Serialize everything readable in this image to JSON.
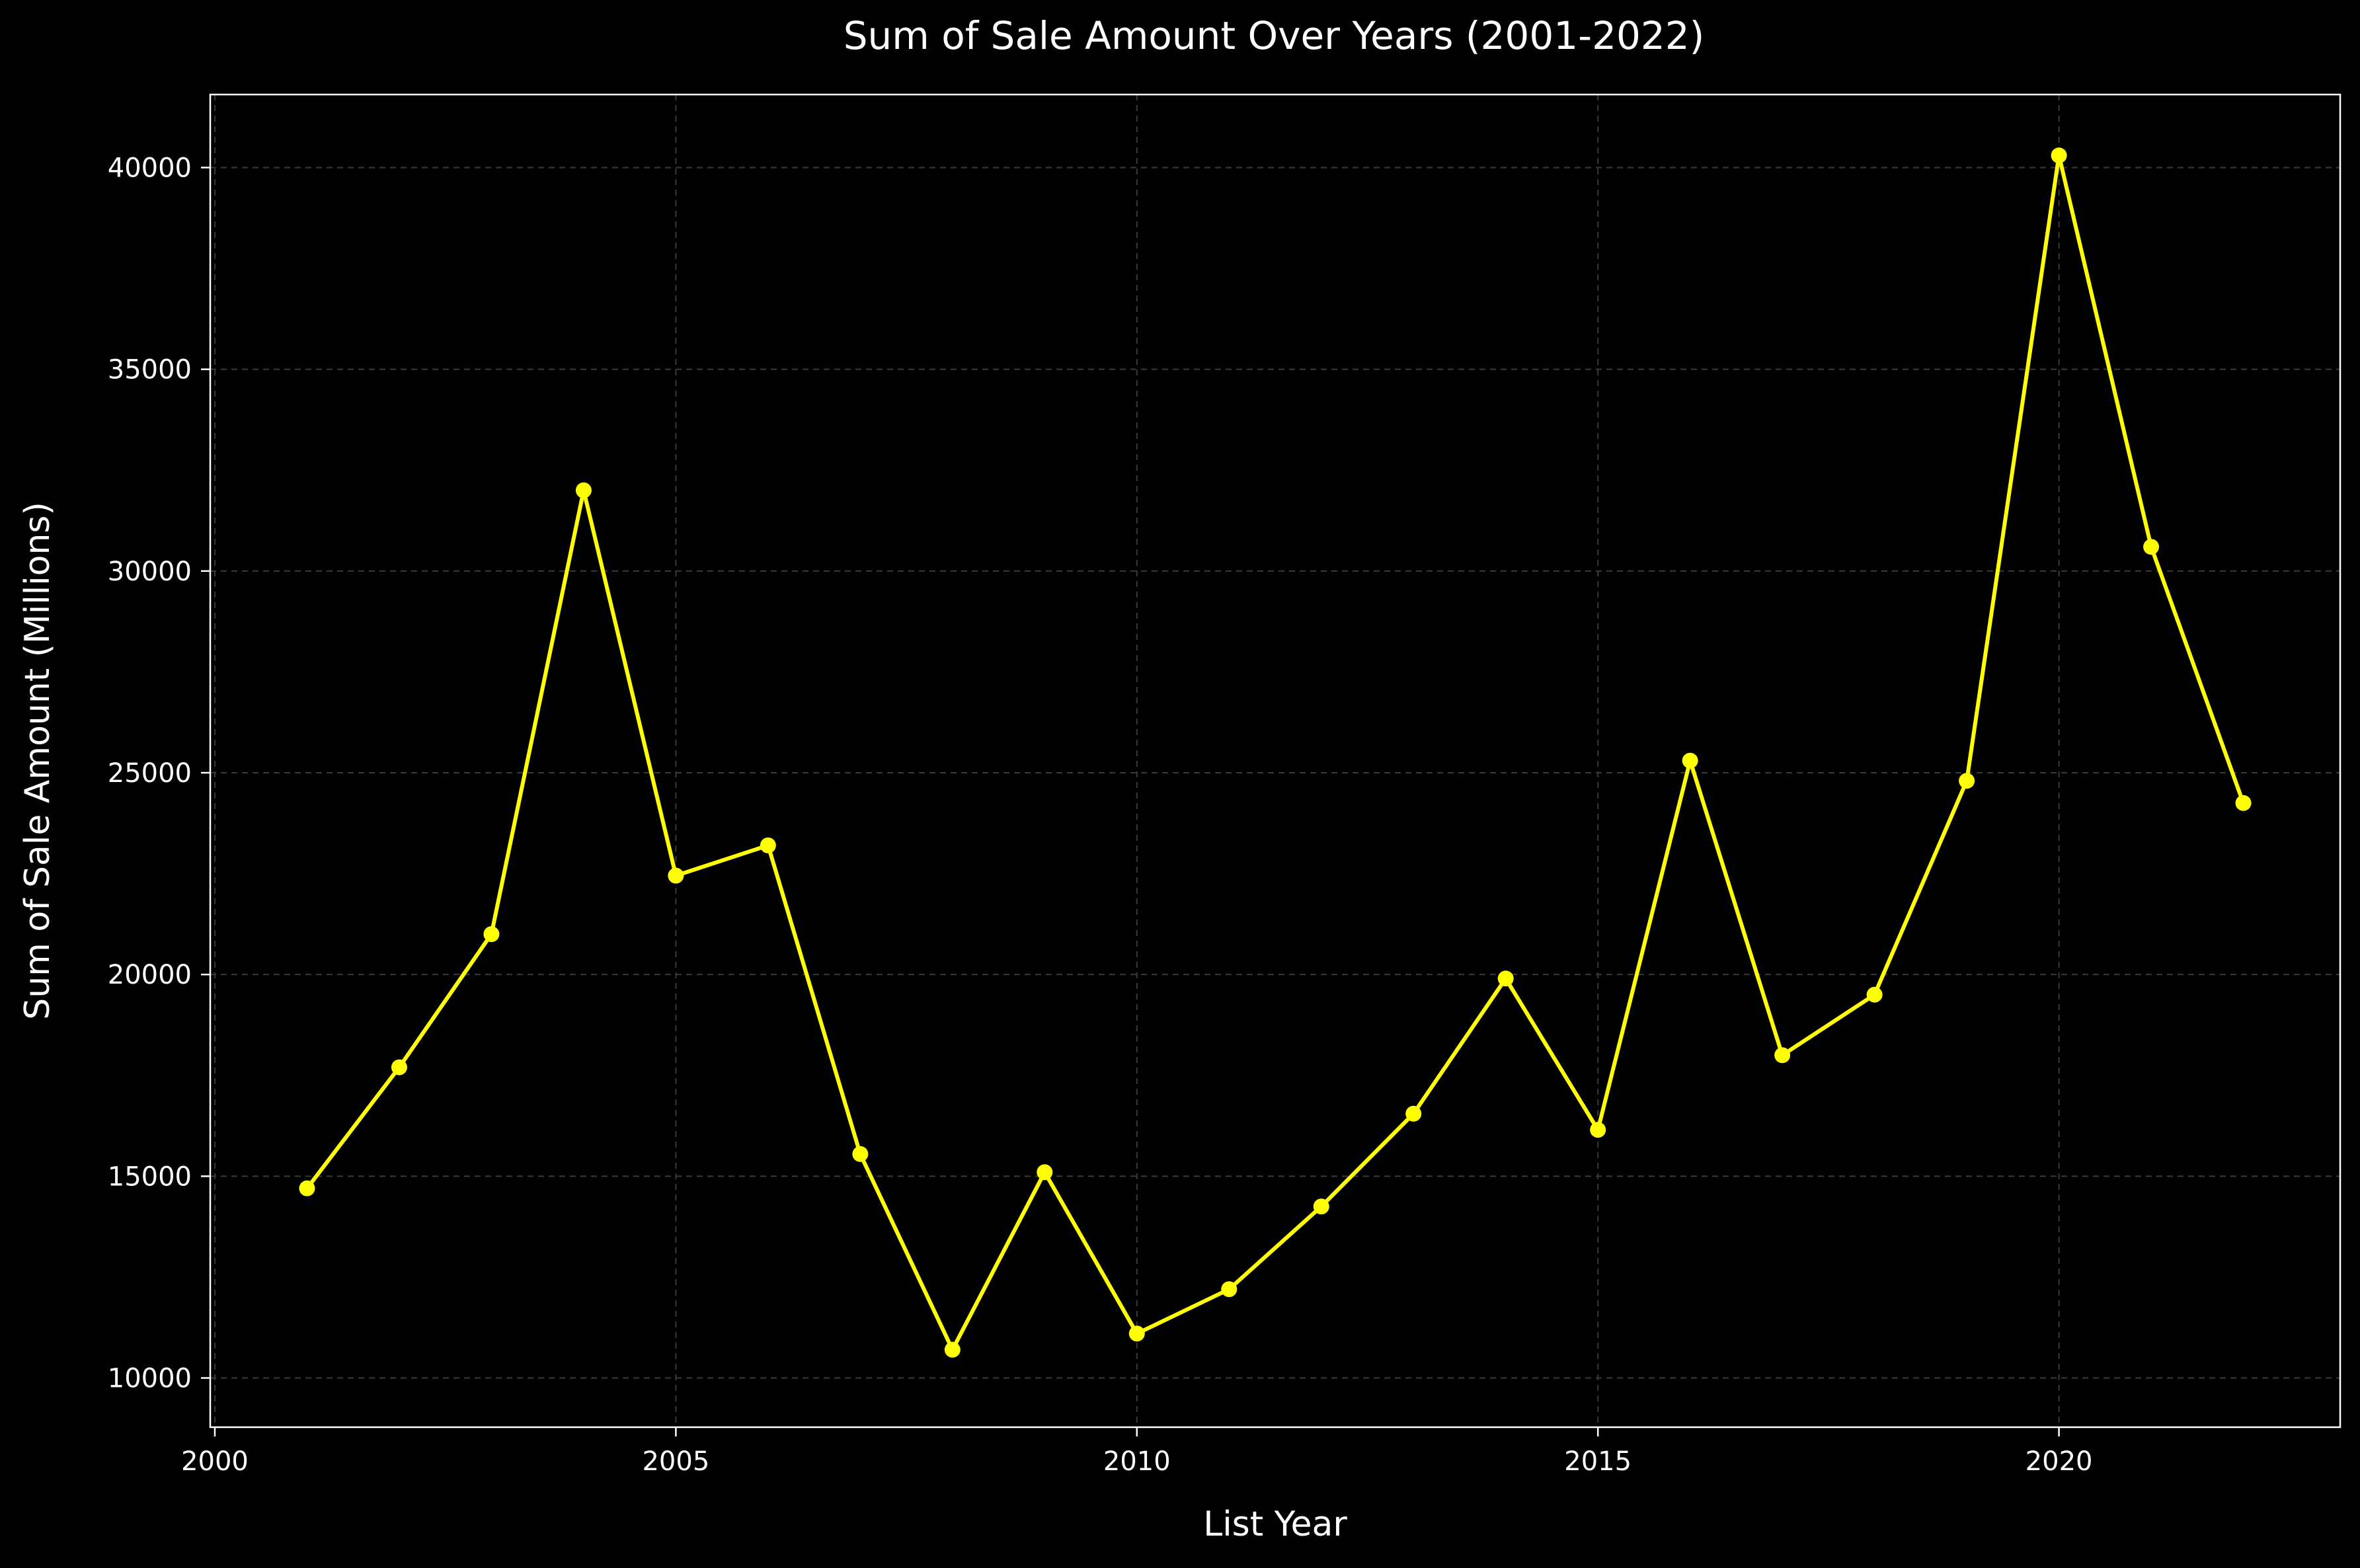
{
  "chart_data": {
    "type": "line",
    "title": "Sum of Sale Amount Over Years (2001-2022)",
    "xlabel": "List Year",
    "ylabel": "Sum of Sale Amount (Millions)",
    "x": [
      2001,
      2002,
      2003,
      2004,
      2005,
      2006,
      2007,
      2008,
      2009,
      2010,
      2011,
      2012,
      2013,
      2014,
      2015,
      2016,
      2017,
      2018,
      2019,
      2020,
      2021,
      2022
    ],
    "series": [
      {
        "values": [
          14700,
          17700,
          21000,
          32000,
          22450,
          23200,
          15550,
          10700,
          15100,
          11100,
          12200,
          14250,
          16550,
          19900,
          16150,
          25300,
          18000,
          19500,
          24800,
          40300,
          30600,
          24250
        ]
      }
    ],
    "xlim": [
      1999.95,
      2023.05
    ],
    "ylim": [
      8780,
      41810
    ],
    "xticks": [
      2000,
      2005,
      2010,
      2015,
      2020
    ],
    "yticks": [
      10000,
      15000,
      20000,
      25000,
      30000,
      35000,
      40000
    ],
    "xtick_labels": [
      "2000",
      "2005",
      "2010",
      "2015",
      "2020"
    ],
    "ytick_labels": [
      "10000",
      "15000",
      "20000",
      "25000",
      "30000",
      "35000",
      "40000"
    ],
    "grid": true,
    "line_color": "#ffff00",
    "marker_color": "#ffff00",
    "background_color": "#000000",
    "axis_color": "#ffffff",
    "grid_color": "#3a3a3a"
  }
}
